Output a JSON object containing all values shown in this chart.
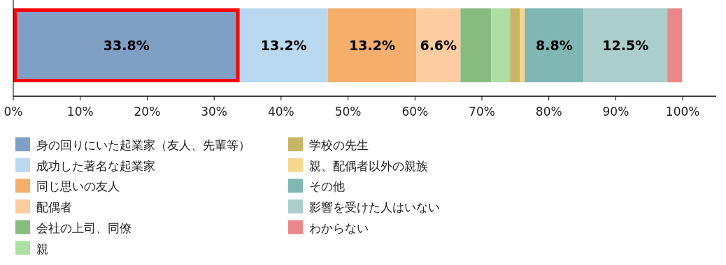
{
  "chart_data": {
    "type": "bar",
    "orientation": "horizontal",
    "stacked": true,
    "categories": [
      null
    ],
    "series": [
      {
        "name": "身の回りにいた起業家（友人、先輩等）",
        "color": "#7f9fc4",
        "values": [
          33.8
        ],
        "value_labels": [
          "33.8%"
        ]
      },
      {
        "name": "成功した著名な起業家",
        "color": "#bad8ef",
        "values": [
          13.2
        ],
        "value_labels": [
          "13.2%"
        ]
      },
      {
        "name": "同じ思いの友人",
        "color": "#f5ae6b",
        "values": [
          13.2
        ],
        "value_labels": [
          "13.2%"
        ]
      },
      {
        "name": "配偶者",
        "color": "#fdcca0",
        "values": [
          6.6
        ],
        "value_labels": [
          "6.6%"
        ]
      },
      {
        "name": "会社の上司、同僚",
        "color": "#88bb80",
        "values": [
          4.6
        ],
        "value_labels": [
          null
        ]
      },
      {
        "name": "親",
        "color": "#addfa5",
        "values": [
          2.8
        ],
        "value_labels": [
          null
        ]
      },
      {
        "name": "学校の先生",
        "color": "#c8b566",
        "values": [
          1.5
        ],
        "value_labels": [
          null
        ]
      },
      {
        "name": "親、配偶者以外の親族",
        "color": "#f5d88c",
        "values": [
          0.7
        ],
        "value_labels": [
          null
        ]
      },
      {
        "name": "その他",
        "color": "#80b6b3",
        "values": [
          8.8
        ],
        "value_labels": [
          "8.8%"
        ]
      },
      {
        "name": "影響を受けた人はいない",
        "color": "#abcecb",
        "values": [
          12.5
        ],
        "value_labels": [
          "12.5%"
        ]
      },
      {
        "name": "わからない",
        "color": "#e9878a",
        "values": [
          2.2
        ],
        "value_labels": [
          null
        ]
      }
    ],
    "xlim": [
      0,
      105
    ],
    "xticks": [
      {
        "value": 0,
        "label": "0%"
      },
      {
        "value": 10,
        "label": "10%"
      },
      {
        "value": 20,
        "label": "20%"
      },
      {
        "value": 30,
        "label": "30%"
      },
      {
        "value": 40,
        "label": "40%"
      },
      {
        "value": 50,
        "label": "50%"
      },
      {
        "value": 60,
        "label": "60%"
      },
      {
        "value": 70,
        "label": "70%"
      },
      {
        "value": 80,
        "label": "80%"
      },
      {
        "value": 90,
        "label": "90%"
      },
      {
        "value": 100,
        "label": "100%"
      }
    ],
    "grid": false,
    "legend": "bottom"
  }
}
